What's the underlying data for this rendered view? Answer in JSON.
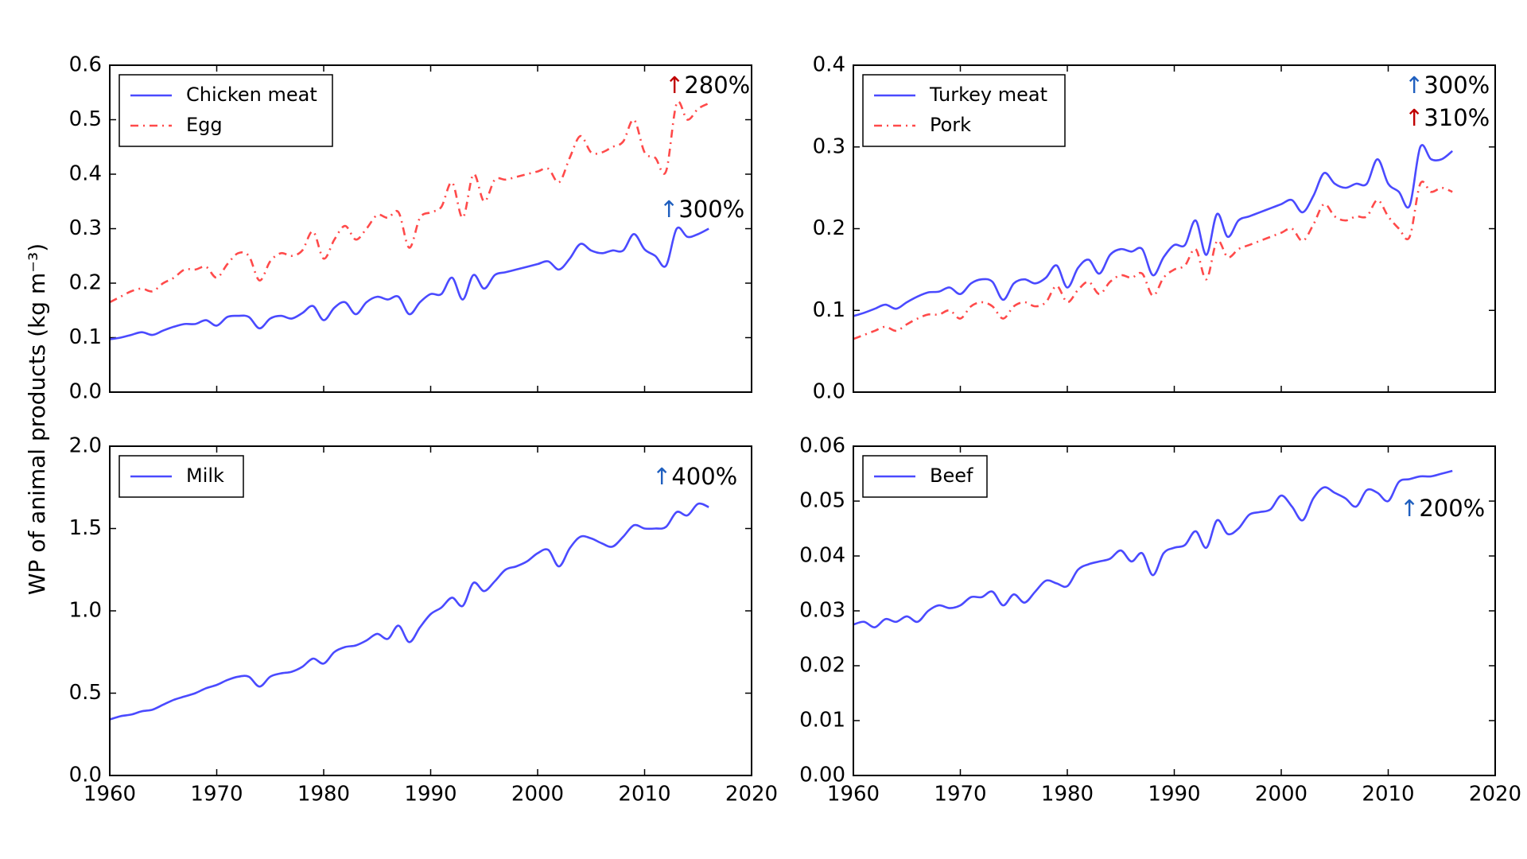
{
  "chart_data": [
    {
      "type": "line",
      "ylabel": "WP of animal products (kg m⁻³)",
      "x": [
        1960,
        1961,
        1962,
        1963,
        1964,
        1965,
        1966,
        1967,
        1968,
        1969,
        1970,
        1971,
        1972,
        1973,
        1974,
        1975,
        1976,
        1977,
        1978,
        1979,
        1980,
        1981,
        1982,
        1983,
        1984,
        1985,
        1986,
        1987,
        1988,
        1989,
        1990,
        1991,
        1992,
        1993,
        1994,
        1995,
        1996,
        1997,
        1998,
        1999,
        2000,
        2001,
        2002,
        2003,
        2004,
        2005,
        2006,
        2007,
        2008,
        2009,
        2010,
        2011,
        2012,
        2013,
        2014,
        2015,
        2016
      ],
      "xlim": [
        1960,
        2020
      ],
      "xticks": [
        1960,
        1970,
        1980,
        1990,
        2000,
        2010,
        2020
      ],
      "ylim": [
        0,
        0.6
      ],
      "yticks": [
        {
          "value": 0,
          "label": "0.0"
        },
        0.1,
        0.2,
        0.3,
        0.4,
        0.5,
        0.6
      ],
      "legend_loc": "upper left",
      "series": [
        {
          "name": "Chicken meat",
          "color": "#4a4aff",
          "linestyle": "solid",
          "values": [
            0.097,
            0.1,
            0.105,
            0.11,
            0.105,
            0.113,
            0.12,
            0.125,
            0.125,
            0.132,
            0.122,
            0.138,
            0.14,
            0.138,
            0.117,
            0.135,
            0.14,
            0.135,
            0.145,
            0.158,
            0.132,
            0.155,
            0.165,
            0.143,
            0.165,
            0.175,
            0.17,
            0.175,
            0.143,
            0.165,
            0.18,
            0.18,
            0.21,
            0.17,
            0.215,
            0.19,
            0.215,
            0.22,
            0.225,
            0.23,
            0.235,
            0.24,
            0.225,
            0.245,
            0.272,
            0.26,
            0.255,
            0.26,
            0.26,
            0.29,
            0.262,
            0.25,
            0.232,
            0.3,
            0.285,
            0.29,
            0.3
          ]
        },
        {
          "name": "Egg",
          "color": "#ff4a4a",
          "linestyle": "dashdot",
          "values": [
            0.165,
            0.175,
            0.185,
            0.19,
            0.185,
            0.2,
            0.21,
            0.225,
            0.225,
            0.23,
            0.21,
            0.235,
            0.255,
            0.25,
            0.205,
            0.24,
            0.255,
            0.25,
            0.26,
            0.295,
            0.245,
            0.28,
            0.305,
            0.28,
            0.3,
            0.325,
            0.32,
            0.33,
            0.265,
            0.32,
            0.33,
            0.34,
            0.385,
            0.32,
            0.4,
            0.35,
            0.39,
            0.39,
            0.395,
            0.4,
            0.405,
            0.41,
            0.385,
            0.43,
            0.47,
            0.44,
            0.44,
            0.45,
            0.46,
            0.5,
            0.44,
            0.43,
            0.405,
            0.53,
            0.5,
            0.52,
            0.53
          ]
        }
      ],
      "annotations": [
        {
          "arrow": "↑",
          "text": "280%",
          "arrow_color": "#c00000"
        },
        {
          "arrow": "↑",
          "text": "300%",
          "arrow_color": "#1f5fbf"
        }
      ]
    },
    {
      "type": "line",
      "x": [
        1960,
        1961,
        1962,
        1963,
        1964,
        1965,
        1966,
        1967,
        1968,
        1969,
        1970,
        1971,
        1972,
        1973,
        1974,
        1975,
        1976,
        1977,
        1978,
        1979,
        1980,
        1981,
        1982,
        1983,
        1984,
        1985,
        1986,
        1987,
        1988,
        1989,
        1990,
        1991,
        1992,
        1993,
        1994,
        1995,
        1996,
        1997,
        1998,
        1999,
        2000,
        2001,
        2002,
        2003,
        2004,
        2005,
        2006,
        2007,
        2008,
        2009,
        2010,
        2011,
        2012,
        2013,
        2014,
        2015,
        2016
      ],
      "xlim": [
        1960,
        2020
      ],
      "xticks": [
        1960,
        1970,
        1980,
        1990,
        2000,
        2010,
        2020
      ],
      "ylim": [
        0,
        0.4
      ],
      "yticks": [
        {
          "value": 0,
          "label": "0.0"
        },
        0.1,
        0.2,
        0.3,
        0.4
      ],
      "legend_loc": "upper left",
      "series": [
        {
          "name": "Turkey meat",
          "color": "#4a4aff",
          "linestyle": "solid",
          "values": [
            0.093,
            0.097,
            0.102,
            0.107,
            0.102,
            0.11,
            0.117,
            0.122,
            0.123,
            0.128,
            0.12,
            0.133,
            0.138,
            0.135,
            0.113,
            0.133,
            0.138,
            0.133,
            0.14,
            0.155,
            0.128,
            0.152,
            0.162,
            0.145,
            0.168,
            0.175,
            0.172,
            0.175,
            0.143,
            0.165,
            0.18,
            0.18,
            0.21,
            0.168,
            0.218,
            0.19,
            0.21,
            0.215,
            0.22,
            0.225,
            0.23,
            0.235,
            0.22,
            0.24,
            0.268,
            0.255,
            0.25,
            0.255,
            0.255,
            0.285,
            0.255,
            0.245,
            0.228,
            0.3,
            0.285,
            0.285,
            0.295
          ]
        },
        {
          "name": "Pork",
          "color": "#ff4a4a",
          "linestyle": "dashdot",
          "values": [
            0.065,
            0.07,
            0.075,
            0.08,
            0.075,
            0.083,
            0.09,
            0.095,
            0.095,
            0.1,
            0.09,
            0.105,
            0.11,
            0.105,
            0.09,
            0.105,
            0.11,
            0.105,
            0.11,
            0.13,
            0.11,
            0.125,
            0.135,
            0.12,
            0.135,
            0.143,
            0.14,
            0.145,
            0.118,
            0.14,
            0.15,
            0.155,
            0.175,
            0.138,
            0.185,
            0.165,
            0.175,
            0.18,
            0.185,
            0.19,
            0.195,
            0.2,
            0.185,
            0.205,
            0.23,
            0.215,
            0.21,
            0.215,
            0.215,
            0.235,
            0.215,
            0.2,
            0.19,
            0.255,
            0.245,
            0.25,
            0.245
          ]
        }
      ],
      "annotations": [
        {
          "arrow": "↑",
          "text": "300%",
          "arrow_color": "#1f5fbf"
        },
        {
          "arrow": "↑",
          "text": "310%",
          "arrow_color": "#c00000"
        }
      ]
    },
    {
      "type": "line",
      "x": [
        1960,
        1961,
        1962,
        1963,
        1964,
        1965,
        1966,
        1967,
        1968,
        1969,
        1970,
        1971,
        1972,
        1973,
        1974,
        1975,
        1976,
        1977,
        1978,
        1979,
        1980,
        1981,
        1982,
        1983,
        1984,
        1985,
        1986,
        1987,
        1988,
        1989,
        1990,
        1991,
        1992,
        1993,
        1994,
        1995,
        1996,
        1997,
        1998,
        1999,
        2000,
        2001,
        2002,
        2003,
        2004,
        2005,
        2006,
        2007,
        2008,
        2009,
        2010,
        2011,
        2012,
        2013,
        2014,
        2015,
        2016
      ],
      "xlim": [
        1960,
        2020
      ],
      "xticks": [
        1960,
        1970,
        1980,
        1990,
        2000,
        2010,
        2020
      ],
      "ylim": [
        0,
        2
      ],
      "yticks": [
        {
          "value": 0,
          "label": "0.0"
        },
        0.5,
        {
          "value": 1,
          "label": "1.0"
        },
        1.5,
        {
          "value": 2,
          "label": "2.0"
        }
      ],
      "legend_loc": "upper left",
      "series": [
        {
          "name": "Milk",
          "color": "#4a4aff",
          "linestyle": "solid",
          "values": [
            0.34,
            0.36,
            0.37,
            0.39,
            0.4,
            0.43,
            0.46,
            0.48,
            0.5,
            0.53,
            0.55,
            0.58,
            0.6,
            0.6,
            0.54,
            0.6,
            0.62,
            0.63,
            0.66,
            0.71,
            0.68,
            0.75,
            0.78,
            0.79,
            0.82,
            0.86,
            0.83,
            0.91,
            0.81,
            0.9,
            0.98,
            1.02,
            1.08,
            1.03,
            1.17,
            1.12,
            1.18,
            1.25,
            1.27,
            1.3,
            1.35,
            1.37,
            1.27,
            1.38,
            1.45,
            1.44,
            1.41,
            1.39,
            1.45,
            1.52,
            1.5,
            1.5,
            1.51,
            1.6,
            1.58,
            1.65,
            1.63
          ]
        }
      ],
      "annotations": [
        {
          "arrow": "↑",
          "text": "400%",
          "arrow_color": "#1f5fbf"
        }
      ]
    },
    {
      "type": "line",
      "x": [
        1960,
        1961,
        1962,
        1963,
        1964,
        1965,
        1966,
        1967,
        1968,
        1969,
        1970,
        1971,
        1972,
        1973,
        1974,
        1975,
        1976,
        1977,
        1978,
        1979,
        1980,
        1981,
        1982,
        1983,
        1984,
        1985,
        1986,
        1987,
        1988,
        1989,
        1990,
        1991,
        1992,
        1993,
        1994,
        1995,
        1996,
        1997,
        1998,
        1999,
        2000,
        2001,
        2002,
        2003,
        2004,
        2005,
        2006,
        2007,
        2008,
        2009,
        2010,
        2011,
        2012,
        2013,
        2014,
        2015,
        2016
      ],
      "xlim": [
        1960,
        2020
      ],
      "xticks": [
        1960,
        1970,
        1980,
        1990,
        2000,
        2010,
        2020
      ],
      "ylim": [
        0,
        0.06
      ],
      "yticks": [
        {
          "value": 0,
          "label": "0.00"
        },
        0.01,
        0.02,
        0.03,
        0.04,
        0.05,
        0.06
      ],
      "legend_loc": "upper left",
      "series": [
        {
          "name": "Beef",
          "color": "#4a4aff",
          "linestyle": "solid",
          "values": [
            0.0275,
            0.028,
            0.027,
            0.0285,
            0.028,
            0.029,
            0.028,
            0.03,
            0.031,
            0.0305,
            0.031,
            0.0325,
            0.0325,
            0.0335,
            0.031,
            0.033,
            0.0315,
            0.0335,
            0.0355,
            0.035,
            0.0345,
            0.0375,
            0.0385,
            0.039,
            0.0395,
            0.041,
            0.039,
            0.0405,
            0.0365,
            0.0405,
            0.0415,
            0.042,
            0.0445,
            0.0415,
            0.0465,
            0.044,
            0.045,
            0.0475,
            0.048,
            0.0485,
            0.051,
            0.049,
            0.0465,
            0.0505,
            0.0525,
            0.0515,
            0.0505,
            0.049,
            0.052,
            0.0515,
            0.05,
            0.0535,
            0.054,
            0.0545,
            0.0545,
            0.055,
            0.0555
          ]
        }
      ],
      "annotations": [
        {
          "arrow": "↑",
          "text": "200%",
          "arrow_color": "#1f5fbf"
        }
      ]
    }
  ]
}
